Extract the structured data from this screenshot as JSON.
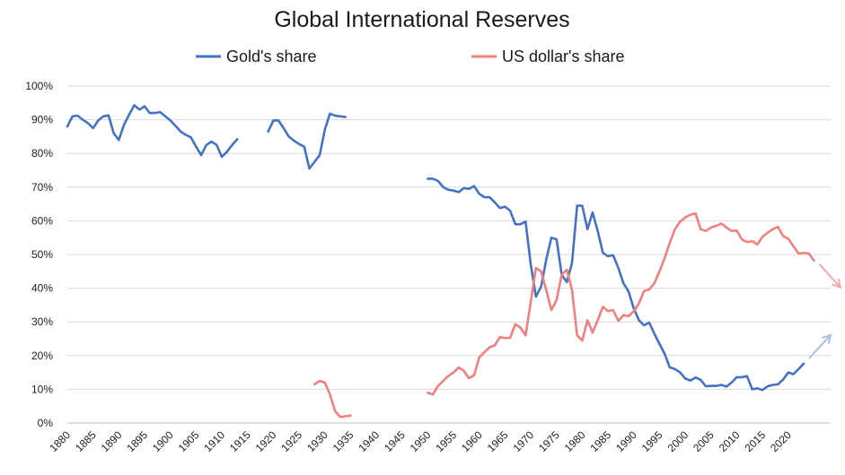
{
  "chart_data": {
    "type": "line",
    "title": "Global International Reserves",
    "ylim": [
      0,
      100
    ],
    "xlim": [
      1880,
      2023
    ],
    "yticks": [
      "0%",
      "10%",
      "20%",
      "30%",
      "40%",
      "50%",
      "60%",
      "70%",
      "80%",
      "90%",
      "100%"
    ],
    "xticks": [
      1880,
      1885,
      1890,
      1895,
      1900,
      1905,
      1910,
      1915,
      1920,
      1925,
      1930,
      1935,
      1940,
      1945,
      1950,
      1955,
      1960,
      1965,
      1970,
      1975,
      1980,
      1985,
      1990,
      1995,
      2000,
      2005,
      2010,
      2015,
      2020
    ],
    "grid": true,
    "legend_position": "top",
    "series": [
      {
        "name": "Gold's share",
        "color": "#4472C4",
        "segments": [
          [
            [
              1880,
              88
            ],
            [
              1881,
              91
            ],
            [
              1882,
              91.2
            ],
            [
              1883,
              90
            ],
            [
              1884,
              89
            ],
            [
              1885,
              87.5
            ],
            [
              1886,
              89.8
            ],
            [
              1887,
              91
            ],
            [
              1888,
              91.3
            ],
            [
              1889,
              86
            ],
            [
              1890,
              84
            ],
            [
              1891,
              88.5
            ],
            [
              1892,
              91.5
            ],
            [
              1893,
              94.3
            ],
            [
              1894,
              93
            ],
            [
              1895,
              94
            ],
            [
              1896,
              92
            ],
            [
              1897,
              92
            ],
            [
              1898,
              92.3
            ],
            [
              1899,
              91
            ],
            [
              1900,
              89.8
            ],
            [
              1901,
              88.2
            ],
            [
              1902,
              86.5
            ],
            [
              1903,
              85.5
            ],
            [
              1904,
              84.8
            ],
            [
              1905,
              82
            ],
            [
              1906,
              79.5
            ],
            [
              1907,
              82.5
            ],
            [
              1908,
              83.5
            ],
            [
              1909,
              82.5
            ],
            [
              1910,
              79
            ],
            [
              1911,
              80.5
            ],
            [
              1912,
              82.5
            ],
            [
              1913,
              84.2
            ]
          ],
          [
            [
              1919,
              86.5
            ],
            [
              1920,
              89.8
            ],
            [
              1921,
              89.8
            ],
            [
              1922,
              87.5
            ],
            [
              1923,
              85
            ],
            [
              1924,
              83.8
            ],
            [
              1925,
              82.8
            ],
            [
              1926,
              82
            ],
            [
              1927,
              75.5
            ],
            [
              1928,
              77.5
            ],
            [
              1929,
              79.5
            ],
            [
              1930,
              87
            ],
            [
              1931,
              91.8
            ],
            [
              1932,
              91.2
            ],
            [
              1933,
              91
            ],
            [
              1934,
              90.8
            ]
          ],
          [
            [
              1950,
              72.5
            ],
            [
              1951,
              72.5
            ],
            [
              1952,
              71.8
            ],
            [
              1953,
              70
            ],
            [
              1954,
              69.2
            ],
            [
              1955,
              69
            ],
            [
              1956,
              68.5
            ],
            [
              1957,
              69.7
            ],
            [
              1958,
              69.5
            ],
            [
              1959,
              70.3
            ],
            [
              1960,
              68
            ],
            [
              1961,
              67
            ],
            [
              1962,
              67
            ],
            [
              1963,
              65.5
            ],
            [
              1964,
              63.8
            ],
            [
              1965,
              64.2
            ],
            [
              1966,
              63
            ],
            [
              1967,
              59
            ],
            [
              1968,
              59
            ],
            [
              1969,
              59.8
            ],
            [
              1970,
              47
            ],
            [
              1971,
              37.5
            ],
            [
              1972,
              40.5
            ],
            [
              1973,
              48.5
            ],
            [
              1974,
              55
            ],
            [
              1975,
              54.5
            ],
            [
              1976,
              44
            ],
            [
              1977,
              41.8
            ],
            [
              1978,
              47.5
            ],
            [
              1979,
              64.5
            ],
            [
              1980,
              64.5
            ],
            [
              1981,
              57.5
            ],
            [
              1982,
              62.5
            ],
            [
              1983,
              57
            ],
            [
              1984,
              50.5
            ],
            [
              1985,
              49.5
            ],
            [
              1986,
              49.8
            ],
            [
              1987,
              46
            ],
            [
              1988,
              41.5
            ],
            [
              1989,
              39
            ],
            [
              1990,
              34
            ],
            [
              1991,
              30.5
            ],
            [
              1992,
              29
            ],
            [
              1993,
              29.8
            ],
            [
              1994,
              26.5
            ],
            [
              1995,
              23.5
            ],
            [
              1996,
              20.5
            ],
            [
              1997,
              16.5
            ],
            [
              1998,
              16
            ],
            [
              1999,
              15
            ],
            [
              2000,
              13.2
            ],
            [
              2001,
              12.6
            ],
            [
              2002,
              13.5
            ],
            [
              2003,
              12.8
            ],
            [
              2004,
              10.9
            ],
            [
              2005,
              11
            ],
            [
              2006,
              11
            ],
            [
              2007,
              11.3
            ],
            [
              2008,
              10.8
            ],
            [
              2009,
              12
            ],
            [
              2010,
              13.6
            ],
            [
              2011,
              13.6
            ],
            [
              2012,
              13.9
            ],
            [
              2013,
              10
            ],
            [
              2014,
              10.3
            ],
            [
              2015,
              9.8
            ],
            [
              2016,
              10.9
            ],
            [
              2017,
              11.3
            ],
            [
              2018,
              11.5
            ],
            [
              2019,
              12.9
            ],
            [
              2020,
              15
            ],
            [
              2021,
              14.5
            ],
            [
              2022,
              16
            ],
            [
              2023,
              17.6
            ]
          ]
        ]
      },
      {
        "name": "US dollar's share",
        "color": "#F08080",
        "segments": [
          [
            [
              1928,
              11.5
            ],
            [
              1929,
              12.5
            ],
            [
              1930,
              12
            ],
            [
              1931,
              8.5
            ],
            [
              1932,
              3.5
            ],
            [
              1933,
              1.8
            ],
            [
              1934,
              2
            ],
            [
              1935,
              2.2
            ]
          ],
          [
            [
              1950,
              9
            ],
            [
              1951,
              8.5
            ],
            [
              1952,
              11
            ],
            [
              1953,
              12.5
            ],
            [
              1954,
              14
            ],
            [
              1955,
              15
            ],
            [
              1956,
              16.5
            ],
            [
              1957,
              15.5
            ],
            [
              1958,
              13.3
            ],
            [
              1959,
              14.2
            ],
            [
              1960,
              19.5
            ],
            [
              1961,
              21
            ],
            [
              1962,
              22.5
            ],
            [
              1963,
              23
            ],
            [
              1964,
              25.5
            ],
            [
              1965,
              25.2
            ],
            [
              1966,
              25.3
            ],
            [
              1967,
              29.3
            ],
            [
              1968,
              28.3
            ],
            [
              1969,
              26
            ],
            [
              1970,
              36
            ],
            [
              1971,
              46
            ],
            [
              1972,
              45
            ],
            [
              1973,
              39.5
            ],
            [
              1974,
              33.5
            ],
            [
              1975,
              36.5
            ],
            [
              1976,
              44
            ],
            [
              1977,
              45.5
            ],
            [
              1978,
              39.5
            ],
            [
              1979,
              26
            ],
            [
              1980,
              24.5
            ],
            [
              1981,
              30.5
            ],
            [
              1982,
              26.8
            ],
            [
              1983,
              30.5
            ],
            [
              1984,
              34.5
            ],
            [
              1985,
              33.2
            ],
            [
              1986,
              33.5
            ],
            [
              1987,
              30.3
            ],
            [
              1988,
              32
            ],
            [
              1989,
              31.7
            ],
            [
              1990,
              33.2
            ],
            [
              1991,
              35.5
            ],
            [
              1992,
              39.2
            ],
            [
              1993,
              39.6
            ],
            [
              1994,
              41.5
            ],
            [
              1995,
              45
            ],
            [
              1996,
              49
            ],
            [
              1997,
              53.5
            ],
            [
              1998,
              57.5
            ],
            [
              1999,
              59.8
            ],
            [
              2000,
              61
            ],
            [
              2001,
              61.8
            ],
            [
              2002,
              62.2
            ],
            [
              2003,
              57.5
            ],
            [
              2004,
              57
            ],
            [
              2005,
              58
            ],
            [
              2006,
              58.5
            ],
            [
              2007,
              59.2
            ],
            [
              2008,
              58
            ],
            [
              2009,
              57
            ],
            [
              2010,
              57.1
            ],
            [
              2011,
              54.5
            ],
            [
              2012,
              53.7
            ],
            [
              2013,
              54
            ],
            [
              2014,
              53
            ],
            [
              2015,
              55.3
            ],
            [
              2016,
              56.5
            ],
            [
              2017,
              57.5
            ],
            [
              2018,
              58.2
            ],
            [
              2019,
              55.5
            ],
            [
              2020,
              54.7
            ],
            [
              2021,
              52.5
            ],
            [
              2022,
              50.3
            ],
            [
              2023,
              50.5
            ],
            [
              2024,
              50.3
            ],
            [
              2025,
              48.2
            ]
          ]
        ]
      }
    ],
    "trend_arrows": [
      {
        "series": "US dollar's share",
        "direction": "down",
        "color": "#F4A9A9"
      },
      {
        "series": "Gold's share",
        "direction": "up",
        "color": "#A9C0E4"
      }
    ]
  },
  "footer_note": ""
}
